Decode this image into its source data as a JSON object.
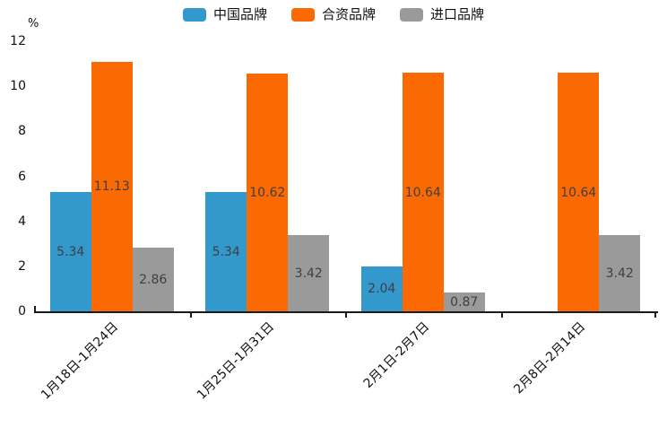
{
  "chart_data": {
    "type": "bar",
    "title": "",
    "xlabel": "",
    "ylabel": "%",
    "categories": [
      "1月18日-1月24日",
      "1月25日-1月31日",
      "2月1日-2月7日",
      "2月8日-2月14日"
    ],
    "series": [
      {
        "name": "中国品牌",
        "color": "#3398cb",
        "values": [
          5.34,
          5.34,
          2.04,
          null
        ]
      },
      {
        "name": "合资品牌",
        "color": "#fb6a02",
        "values": [
          11.13,
          10.62,
          10.64,
          10.64
        ]
      },
      {
        "name": "进口品牌",
        "color": "#9a9a9a",
        "values": [
          2.86,
          3.42,
          0.87,
          3.42
        ]
      }
    ],
    "data_labels": [
      [
        "5.34",
        "5.34",
        "2.04",
        null
      ],
      [
        "11.13",
        "10.62",
        "10.64",
        "10.64"
      ],
      [
        "2.86",
        "3.42",
        "0.87",
        "3.42"
      ]
    ],
    "ylim": [
      0,
      12
    ],
    "yticks": [
      "0",
      "2",
      "4",
      "6",
      "8",
      "10",
      "12"
    ],
    "grid": false,
    "legend_position": "top",
    "label_position": "inside-center",
    "axis_color": "#1a1a1a",
    "label_color": "#3f3f3f"
  }
}
